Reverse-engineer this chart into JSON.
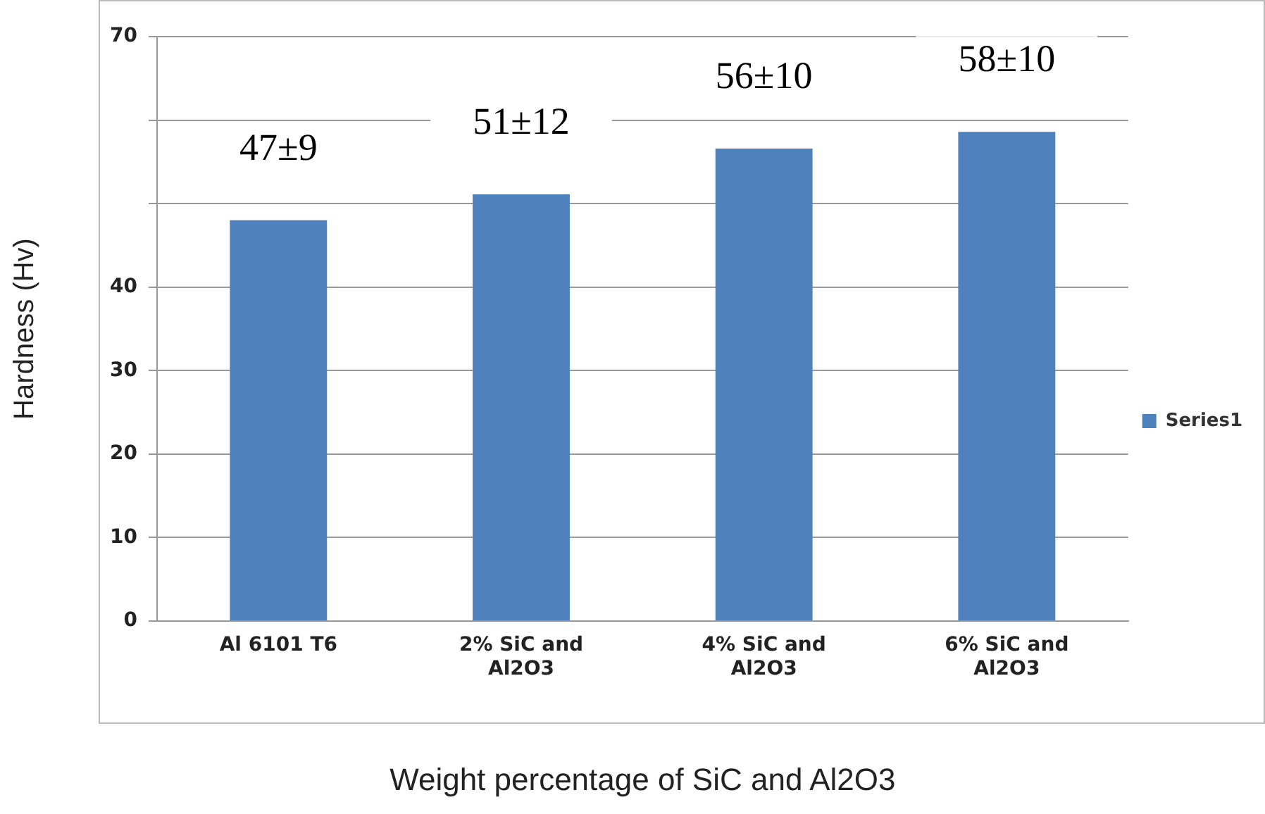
{
  "chart_data": {
    "type": "bar",
    "xlabel": "Weight percentage of SiC and Al2O3",
    "ylabel": "Hardness (Hv)",
    "categories": [
      "Al 6101 T6",
      "2% SiC and Al2O3",
      "4% SiC and Al2O3",
      "6% SiC and Al2O3"
    ],
    "series": [
      {
        "name": "Series1",
        "color": "#4f81bd",
        "values": [
          48,
          51.1,
          56.6,
          58.6
        ]
      }
    ],
    "ylim": [
      0,
      70
    ],
    "yticks": [
      0,
      10,
      20,
      30,
      40,
      {
        "value": 50,
        "label": null
      },
      {
        "value": 60,
        "label": null
      },
      70
    ],
    "grid": "y",
    "legend": "right",
    "annotations": [
      "47±9",
      "51±12",
      "56±10",
      "58±10"
    ]
  }
}
